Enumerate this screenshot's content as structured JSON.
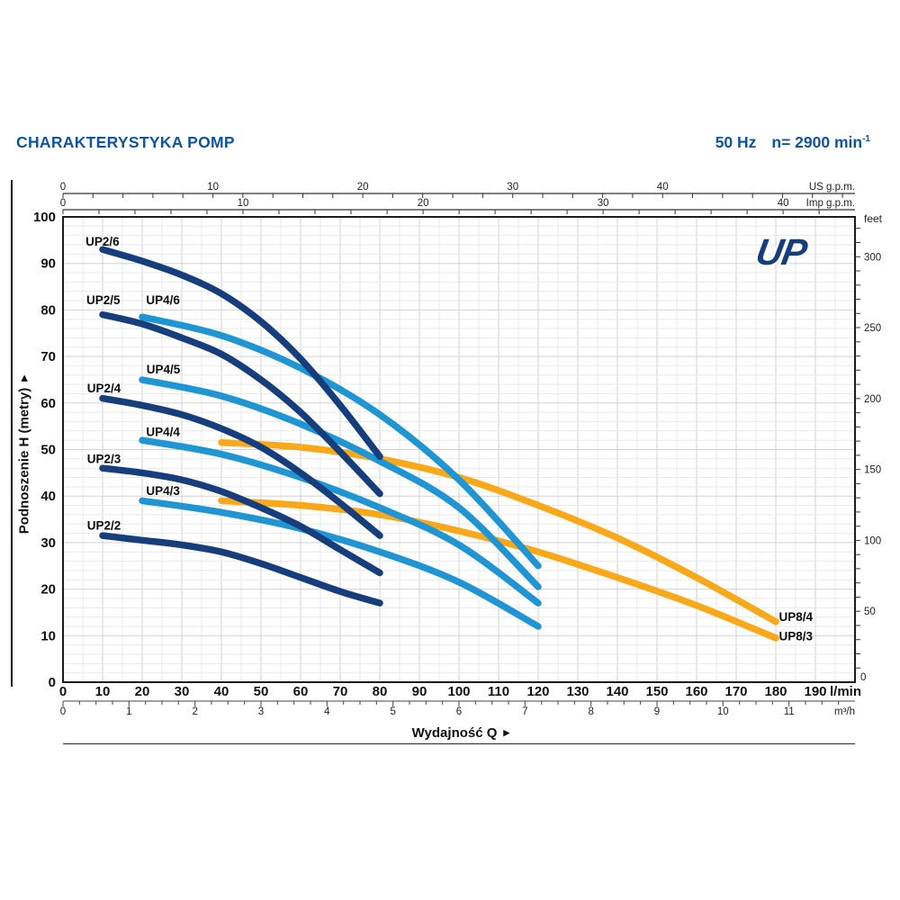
{
  "header": {
    "title": "CHARAKTERYSTYKA POMP",
    "frequency": "50 Hz",
    "speed": "n= 2900 min",
    "speed_exponent": "-1"
  },
  "logo": "UP",
  "axis_titles": {
    "y_left": "Podnoszenie H (metry)",
    "x_bottom": "Wydajność Q",
    "arrow": "▶"
  },
  "colors": {
    "title_blue": "#0d55a2",
    "navy": "#163e7d",
    "light_blue": "#1f95d4",
    "orange": "#f8a818",
    "grid_minor": "#e9e9e9",
    "grid_major": "#d2d2d2",
    "axis_dark": "#1c1c1c",
    "tick_gray": "#333333",
    "label_black": "#111111"
  },
  "chart_data": {
    "type": "line",
    "x_range_lmin": [
      0,
      200
    ],
    "y_range_m": [
      0,
      100
    ],
    "grid": "on",
    "x_axes": {
      "lmin": {
        "unit": "l/min",
        "ticks": [
          0,
          10,
          20,
          30,
          40,
          50,
          60,
          70,
          80,
          90,
          100,
          110,
          120,
          130,
          140,
          150,
          160,
          170,
          180,
          190
        ]
      },
      "m3h": {
        "unit": "m³/h",
        "ticks": [
          0,
          1,
          2,
          3,
          4,
          5,
          6,
          7,
          8,
          9,
          10,
          11
        ]
      },
      "us_gpm": {
        "unit": "US g.p.m.",
        "ticks": [
          0,
          10,
          20,
          30,
          40
        ]
      },
      "imp_gpm": {
        "unit": "Imp g.p.m.",
        "ticks": [
          0,
          10,
          20,
          30,
          40
        ]
      }
    },
    "y_axes": {
      "meters": {
        "unit": "metry",
        "ticks": [
          0,
          10,
          20,
          30,
          40,
          50,
          60,
          70,
          80,
          90,
          100
        ]
      },
      "feet": {
        "unit": "feet",
        "ticks": [
          0,
          50,
          100,
          150,
          200,
          250,
          300
        ]
      }
    },
    "series": [
      {
        "name": "UP2/6",
        "color": "#163e7d",
        "label_q": 5.7,
        "label_h": 93.8,
        "points": [
          [
            10,
            93
          ],
          [
            20,
            90.5
          ],
          [
            30,
            87.5
          ],
          [
            40,
            83.5
          ],
          [
            50,
            77.5
          ],
          [
            60,
            69.5
          ],
          [
            70,
            59.5
          ],
          [
            80,
            48.5
          ]
        ]
      },
      {
        "name": "UP2/5",
        "color": "#163e7d",
        "label_q": 5.9,
        "label_h": 81.2,
        "points": [
          [
            10,
            79
          ],
          [
            20,
            77
          ],
          [
            30,
            74
          ],
          [
            40,
            70.5
          ],
          [
            50,
            65
          ],
          [
            60,
            58
          ],
          [
            70,
            49.5
          ],
          [
            80,
            40.5
          ]
        ]
      },
      {
        "name": "UP2/4",
        "color": "#163e7d",
        "label_q": 6.1,
        "label_h": 62.3,
        "points": [
          [
            10,
            61
          ],
          [
            20,
            59.5
          ],
          [
            30,
            57.5
          ],
          [
            40,
            54.5
          ],
          [
            50,
            50.5
          ],
          [
            60,
            45
          ],
          [
            70,
            38.5
          ],
          [
            80,
            31.5
          ]
        ]
      },
      {
        "name": "UP2/3",
        "color": "#163e7d",
        "label_q": 6.1,
        "label_h": 47.1,
        "points": [
          [
            10,
            46
          ],
          [
            20,
            45
          ],
          [
            30,
            43.5
          ],
          [
            40,
            41
          ],
          [
            50,
            37.5
          ],
          [
            60,
            33.5
          ],
          [
            70,
            28.5
          ],
          [
            80,
            23.5
          ]
        ]
      },
      {
        "name": "UP2/2",
        "color": "#163e7d",
        "label_q": 6.1,
        "label_h": 32.8,
        "points": [
          [
            10,
            31.5
          ],
          [
            20,
            30.5
          ],
          [
            30,
            29.5
          ],
          [
            40,
            28
          ],
          [
            50,
            25.5
          ],
          [
            60,
            22.5
          ],
          [
            70,
            19.5
          ],
          [
            80,
            17
          ]
        ]
      },
      {
        "name": "UP4/6",
        "color": "#1f95d4",
        "label_q": 21.0,
        "label_h": 81.2,
        "points": [
          [
            20,
            78.5
          ],
          [
            40,
            74.5
          ],
          [
            60,
            67.5
          ],
          [
            80,
            57.5
          ],
          [
            100,
            43.5
          ],
          [
            120,
            25
          ]
        ]
      },
      {
        "name": "UP4/5",
        "color": "#1f95d4",
        "label_q": 21.1,
        "label_h": 66.3,
        "points": [
          [
            20,
            65
          ],
          [
            40,
            61.5
          ],
          [
            60,
            55.5
          ],
          [
            80,
            47.5
          ],
          [
            100,
            37.5
          ],
          [
            120,
            20.5
          ]
        ]
      },
      {
        "name": "UP4/4",
        "color": "#1f95d4",
        "label_q": 21.0,
        "label_h": 52.9,
        "points": [
          [
            20,
            52
          ],
          [
            40,
            49
          ],
          [
            60,
            44
          ],
          [
            80,
            37.5
          ],
          [
            100,
            29.5
          ],
          [
            120,
            17
          ]
        ]
      },
      {
        "name": "UP4/3",
        "color": "#1f95d4",
        "label_q": 21.0,
        "label_h": 40.2,
        "points": [
          [
            20,
            39
          ],
          [
            40,
            36.5
          ],
          [
            60,
            33
          ],
          [
            80,
            28
          ],
          [
            100,
            21.5
          ],
          [
            120,
            12
          ]
        ]
      },
      {
        "name": "UP8/4",
        "color": "#f8a818",
        "label_q": 180.8,
        "label_h": 13.2,
        "points": [
          [
            40,
            51.5
          ],
          [
            60,
            50.5
          ],
          [
            80,
            48
          ],
          [
            100,
            44
          ],
          [
            120,
            38
          ],
          [
            140,
            31
          ],
          [
            160,
            22.5
          ],
          [
            180,
            13
          ]
        ]
      },
      {
        "name": "UP8/3",
        "color": "#f8a818",
        "label_q": 180.8,
        "label_h": 9.0,
        "points": [
          [
            40,
            39
          ],
          [
            60,
            38
          ],
          [
            80,
            36
          ],
          [
            100,
            32.5
          ],
          [
            120,
            28
          ],
          [
            140,
            22.5
          ],
          [
            160,
            16.5
          ],
          [
            180,
            9.5
          ]
        ]
      }
    ]
  }
}
